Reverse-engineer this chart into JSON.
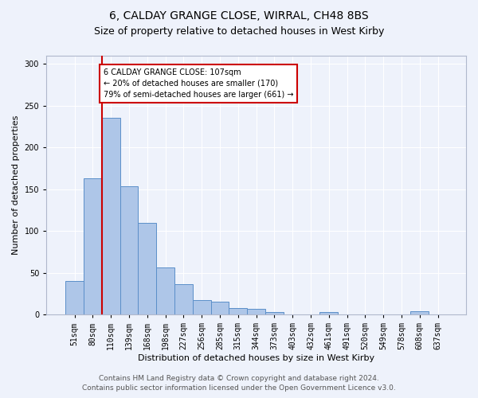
{
  "title": "6, CALDAY GRANGE CLOSE, WIRRAL, CH48 8BS",
  "subtitle": "Size of property relative to detached houses in West Kirby",
  "xlabel": "Distribution of detached houses by size in West Kirby",
  "ylabel": "Number of detached properties",
  "footer_line1": "Contains HM Land Registry data © Crown copyright and database right 2024.",
  "footer_line2": "Contains public sector information licensed under the Open Government Licence v3.0.",
  "bin_labels": [
    "51sqm",
    "80sqm",
    "110sqm",
    "139sqm",
    "168sqm",
    "198sqm",
    "227sqm",
    "256sqm",
    "285sqm",
    "315sqm",
    "344sqm",
    "373sqm",
    "403sqm",
    "432sqm",
    "461sqm",
    "491sqm",
    "520sqm",
    "549sqm",
    "578sqm",
    "608sqm",
    "637sqm"
  ],
  "bar_values": [
    40,
    163,
    236,
    154,
    110,
    56,
    36,
    17,
    15,
    8,
    7,
    3,
    0,
    0,
    3,
    0,
    0,
    0,
    0,
    4,
    0
  ],
  "bar_color": "#aec6e8",
  "bar_edgecolor": "#5b8fc9",
  "ref_line_bin_index": 2,
  "annotation_text": "6 CALDAY GRANGE CLOSE: 107sqm\n← 20% of detached houses are smaller (170)\n79% of semi-detached houses are larger (661) →",
  "annotation_box_color": "#ffffff",
  "annotation_box_edgecolor": "#cc0000",
  "ref_line_color": "#cc0000",
  "ylim": [
    0,
    310
  ],
  "yticks": [
    0,
    50,
    100,
    150,
    200,
    250,
    300
  ],
  "title_fontsize": 10,
  "subtitle_fontsize": 9,
  "axis_label_fontsize": 8,
  "tick_fontsize": 7,
  "annotation_fontsize": 7,
  "footer_fontsize": 6.5,
  "background_color": "#eef2fb",
  "grid_color": "#ffffff",
  "num_bins": 21
}
